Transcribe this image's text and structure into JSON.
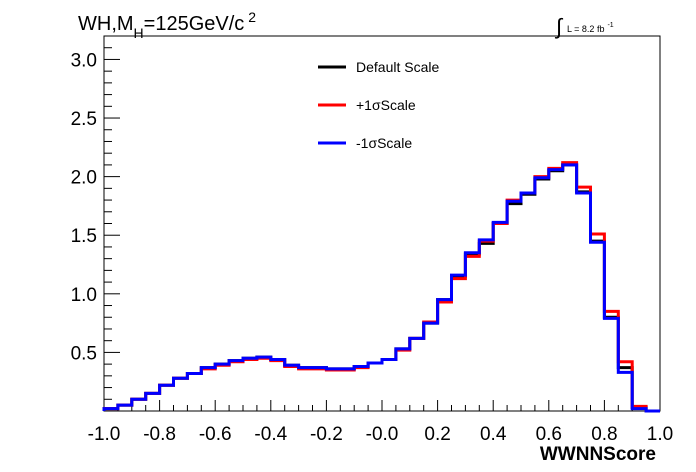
{
  "chart_data": {
    "type": "line",
    "title_parts": {
      "base": "WH,M",
      "sub": "H",
      "rest": "=125GeV/c",
      "sup": "2"
    },
    "lumi_parts": {
      "text": "L = 8.2 fb",
      "sup": "-1"
    },
    "xlabel": "WWNNScore",
    "ylabel": "",
    "xlim": [
      -1.0,
      1.0
    ],
    "ylim": [
      0.0,
      3.2
    ],
    "x_tick_labels": [
      "-1.0",
      "-0.8",
      "-0.6",
      "-0.4",
      "-0.2",
      "-0.0",
      "0.2",
      "0.4",
      "0.6",
      "0.8",
      "1.0"
    ],
    "x_ticks": [
      -1.0,
      -0.8,
      -0.6,
      -0.4,
      -0.2,
      0.0,
      0.2,
      0.4,
      0.6,
      0.8,
      1.0
    ],
    "y_tick_labels": [
      "0.5",
      "1.0",
      "1.5",
      "2.0",
      "2.5",
      "3.0"
    ],
    "y_ticks": [
      0.5,
      1.0,
      1.5,
      2.0,
      2.5,
      3.0
    ],
    "bin_edges": [
      -1.0,
      -0.95,
      -0.9,
      -0.85,
      -0.8,
      -0.75,
      -0.7,
      -0.65,
      -0.6,
      -0.55,
      -0.5,
      -0.45,
      -0.4,
      -0.35,
      -0.3,
      -0.25,
      -0.2,
      -0.15,
      -0.1,
      -0.05,
      0.0,
      0.05,
      0.1,
      0.15,
      0.2,
      0.25,
      0.3,
      0.35,
      0.4,
      0.45,
      0.5,
      0.55,
      0.6,
      0.65,
      0.7,
      0.75,
      0.8,
      0.85,
      0.9,
      0.95,
      1.0
    ],
    "legend_position": "top-center",
    "series": [
      {
        "name": "Default Scale",
        "color": "#000000",
        "values": [
          0.02,
          0.05,
          0.1,
          0.15,
          0.22,
          0.28,
          0.32,
          0.37,
          0.4,
          0.43,
          0.45,
          0.46,
          0.44,
          0.39,
          0.37,
          0.37,
          0.36,
          0.36,
          0.38,
          0.41,
          0.44,
          0.53,
          0.62,
          0.75,
          0.95,
          1.15,
          1.34,
          1.43,
          1.6,
          1.77,
          1.85,
          1.98,
          2.05,
          2.1,
          1.87,
          1.45,
          0.8,
          0.37,
          0.03,
          0.0
        ]
      },
      {
        "name": "+1σScale",
        "color": "#ff0000",
        "values": [
          0.02,
          0.05,
          0.1,
          0.15,
          0.22,
          0.28,
          0.32,
          0.36,
          0.39,
          0.42,
          0.44,
          0.45,
          0.43,
          0.38,
          0.36,
          0.36,
          0.35,
          0.35,
          0.37,
          0.41,
          0.44,
          0.52,
          0.62,
          0.76,
          0.93,
          1.13,
          1.32,
          1.45,
          1.6,
          1.8,
          1.86,
          2.0,
          2.07,
          2.12,
          1.91,
          1.51,
          0.85,
          0.42,
          0.04,
          0.0
        ]
      },
      {
        "name": "-1σScale",
        "color": "#0000ff",
        "values": [
          0.02,
          0.05,
          0.1,
          0.15,
          0.22,
          0.28,
          0.32,
          0.37,
          0.4,
          0.43,
          0.45,
          0.46,
          0.44,
          0.39,
          0.37,
          0.37,
          0.36,
          0.36,
          0.38,
          0.41,
          0.44,
          0.53,
          0.62,
          0.75,
          0.95,
          1.16,
          1.35,
          1.46,
          1.61,
          1.79,
          1.86,
          1.99,
          2.06,
          2.1,
          1.86,
          1.44,
          0.79,
          0.33,
          0.02,
          0.0
        ]
      }
    ]
  }
}
